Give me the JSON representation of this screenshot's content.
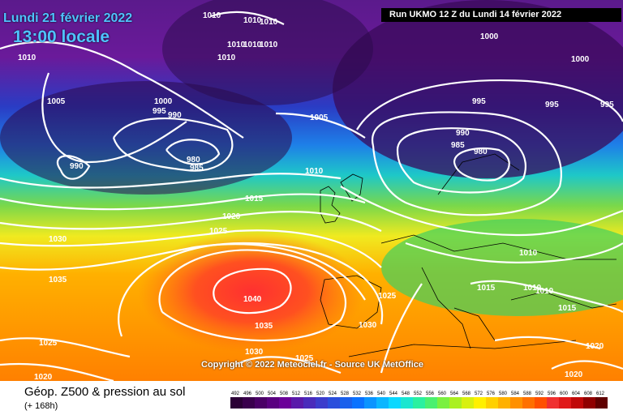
{
  "header": {
    "date_label": "Lundi 21 février 2022",
    "time_label": "13:00 locale",
    "run_label": "Run UKMO 12 Z du Lundi 14 février 2022"
  },
  "map": {
    "copyright": "Copyright © 2022 Meteociel.fr - Source UK MetOffice",
    "pressure_labels": [
      "1010",
      "1010",
      "1010",
      "1010",
      "1010",
      "1010",
      "1010",
      "1010",
      "1005",
      "1000",
      "995",
      "990",
      "990",
      "980",
      "985",
      "1005",
      "1010",
      "1000",
      "1000",
      "995",
      "995",
      "995",
      "990",
      "985",
      "980",
      "1015",
      "1020",
      "1025",
      "1030",
      "1035",
      "1040",
      "1035",
      "1030",
      "1025",
      "1025",
      "1020",
      "1010",
      "1015",
      "1010",
      "1010",
      "1015",
      "1020",
      "1020",
      "1030",
      "1025"
    ]
  },
  "footer": {
    "title": "Géop. Z500 & pression au sol",
    "subtitle": "(+ 168h)",
    "scale_labels": [
      "492",
      "496",
      "500",
      "504",
      "508",
      "512",
      "516",
      "520",
      "524",
      "528",
      "532",
      "536",
      "540",
      "544",
      "548",
      "552",
      "556",
      "560",
      "564",
      "568",
      "572",
      "576",
      "580",
      "584",
      "588",
      "592",
      "596",
      "600",
      "604",
      "608",
      "612"
    ],
    "scale_colors": [
      "#2b0036",
      "#3a004d",
      "#4a0066",
      "#5a0080",
      "#6b0099",
      "#5a1aaa",
      "#4a2bbb",
      "#3b3ccc",
      "#2a4edc",
      "#1a60ec",
      "#0a72ff",
      "#0a94ff",
      "#0ab6ff",
      "#0ad8ff",
      "#1ae6d0",
      "#2af0a0",
      "#4af070",
      "#7af040",
      "#aaf020",
      "#d8f010",
      "#fff000",
      "#ffd000",
      "#ffb000",
      "#ff9000",
      "#ff7000",
      "#ff5000",
      "#f03030",
      "#e01818",
      "#c00808",
      "#900000",
      "#600000"
    ]
  },
  "colors": {
    "title_cyan": "#4fc3ff",
    "run_bg": "#000000"
  }
}
